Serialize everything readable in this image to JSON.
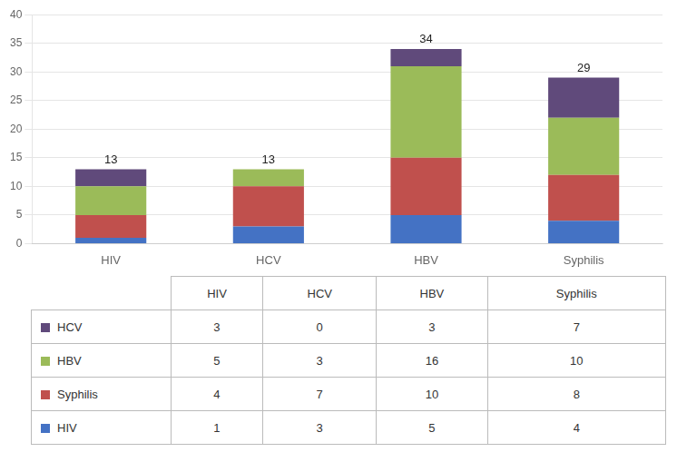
{
  "chart_data": {
    "type": "bar",
    "stacked": true,
    "categories": [
      "HIV",
      "HCV",
      "HBV",
      "Syphilis"
    ],
    "series": [
      {
        "name": "HIV",
        "color": "#4472C4",
        "values": [
          1,
          3,
          5,
          4
        ]
      },
      {
        "name": "Syphilis",
        "color": "#C0504D",
        "values": [
          4,
          7,
          10,
          8
        ]
      },
      {
        "name": "HBV",
        "color": "#9BBB59",
        "values": [
          5,
          3,
          16,
          10
        ]
      },
      {
        "name": "HCV",
        "color": "#604A7B",
        "values": [
          3,
          0,
          3,
          7
        ]
      }
    ],
    "totals": [
      13,
      13,
      34,
      29
    ],
    "ylim": [
      0,
      40
    ],
    "yticks": [
      0,
      5,
      10,
      15,
      20,
      25,
      30,
      35,
      40
    ],
    "grid": true
  }
}
